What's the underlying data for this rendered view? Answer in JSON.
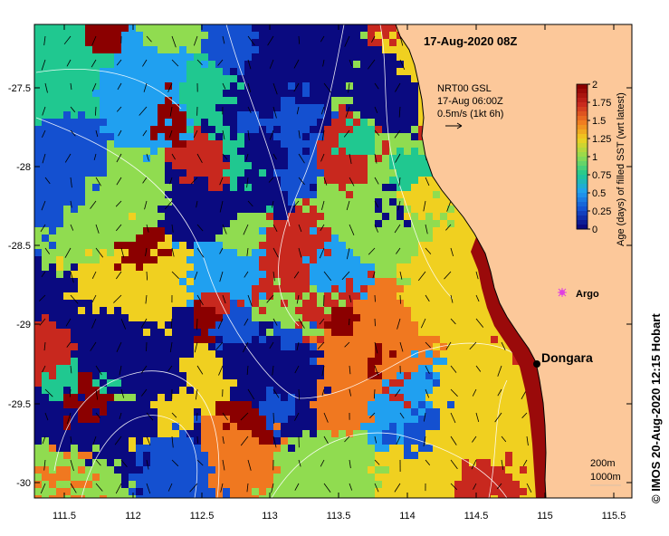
{
  "header": {
    "date_label": "17-Aug-2020 08Z"
  },
  "current_legend": {
    "product": "NRT00 GSL",
    "time": "17-Aug 06:00Z",
    "scale": "0.5m/s (1kt 6h)"
  },
  "colorbar": {
    "title": "Age (days) of filled SST (wrt latest)",
    "ticks": [
      "2",
      "1.75",
      "1.5",
      "1.25",
      "1",
      "0.75",
      "0.5",
      "0.25",
      "0"
    ],
    "colors": [
      "#8b0000",
      "#c8281e",
      "#f07820",
      "#f0d020",
      "#90dc50",
      "#20c890",
      "#20a0f0",
      "#1450d0",
      "#0a0a80"
    ]
  },
  "markers": {
    "argo": "Argo",
    "dongara": "Dongara"
  },
  "contours": {
    "c200": "200m",
    "c1000": "1000m"
  },
  "axes": {
    "y_ticks": [
      "-27.5",
      "-28",
      "-28.5",
      "-29",
      "-29.5",
      "-30"
    ],
    "x_ticks": [
      "111.5",
      "112",
      "112.5",
      "113",
      "113.5",
      "114",
      "114.5",
      "115",
      "115.5"
    ]
  },
  "credit": "© IMOS 20-Aug-2020 12:15 Hobart",
  "colors": {
    "land": "#fcc89a",
    "coast": "#000000",
    "contour": "#ffffff"
  }
}
